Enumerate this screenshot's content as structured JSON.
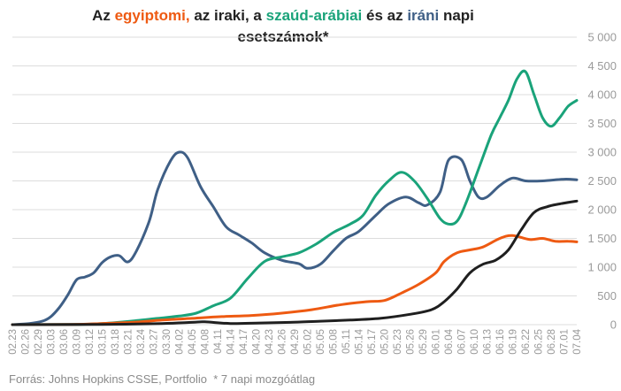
{
  "title": {
    "prefix": "Az ",
    "egypt": "egyiptomi,",
    "iraq_part": " az iraki, a ",
    "saudi": "szaúd-arábiai",
    "and_part": " és az ",
    "iran": "iráni",
    "suffix_line1": " napi",
    "line2": "esetszámok*"
  },
  "footer": {
    "source": "Forrás: Johns Hopkins CSSE, Portfolio",
    "note": "* 7 napi mozgóátlag"
  },
  "colors": {
    "egypt": "#ee5a12",
    "iraq": "#1f1f1f",
    "saudi": "#1aa37a",
    "iran": "#3f5f86",
    "grid": "#dcdcdc",
    "axis_text": "#9a9a9a"
  },
  "chart_data": {
    "type": "line",
    "x_start": "2020-02-23",
    "x_end": "2020-07-04",
    "ylim": [
      0,
      5000
    ],
    "yticks": [
      0,
      500,
      1000,
      1500,
      2000,
      2500,
      3000,
      3500,
      4000,
      4500,
      5000
    ],
    "ytick_labels": [
      "0",
      "500",
      "1 000",
      "1 500",
      "2 000",
      "2 500",
      "3 000",
      "3 500",
      "4 000",
      "4 500",
      "5 000"
    ],
    "xticks": [
      "2020-02-23",
      "2020-02-26",
      "2020-02-29",
      "2020-03-03",
      "2020-03-06",
      "2020-03-09",
      "2020-03-12",
      "2020-03-15",
      "2020-03-18",
      "2020-03-21",
      "2020-03-24",
      "2020-03-27",
      "2020-03-30",
      "2020-04-02",
      "2020-04-05",
      "2020-04-08",
      "2020-04-11",
      "2020-04-14",
      "2020-04-17",
      "2020-04-20",
      "2020-04-23",
      "2020-04-26",
      "2020-04-29",
      "2020-05-02",
      "2020-05-05",
      "2020-05-08",
      "2020-05-11",
      "2020-05-14",
      "2020-05-17",
      "2020-05-20",
      "2020-05-23",
      "2020-05-26",
      "2020-05-29",
      "2020-06-01",
      "2020-06-04",
      "2020-06-07",
      "2020-06-10",
      "2020-06-13",
      "2020-06-16",
      "2020-06-19",
      "2020-06-22",
      "2020-06-25",
      "2020-06-28",
      "2020-07-01",
      "2020-07-04"
    ],
    "xtick_labels": [
      "02.23",
      "02.26",
      "02.29",
      "03.03",
      "03.06",
      "03.09",
      "03.12",
      "03.15",
      "03.18",
      "03.21",
      "03.24",
      "03.27",
      "03.30",
      "04.02",
      "04.05",
      "04.08",
      "04.11",
      "04.14",
      "04.17",
      "04.20",
      "04.23",
      "04.26",
      "04.29",
      "05.02",
      "05.05",
      "05.08",
      "05.11",
      "05.14",
      "05.17",
      "05.20",
      "05.23",
      "05.26",
      "05.29",
      "06.01",
      "06.04",
      "06.07",
      "06.10",
      "06.13",
      "06.16",
      "06.19",
      "06.22",
      "06.25",
      "06.28",
      "07.01",
      "07.04"
    ],
    "grid": true,
    "legend": "none",
    "series": [
      {
        "key": "iran",
        "points": [
          [
            "2020-02-23",
            0
          ],
          [
            "2020-02-27",
            20
          ],
          [
            "2020-03-01",
            60
          ],
          [
            "2020-03-03",
            140
          ],
          [
            "2020-03-05",
            300
          ],
          [
            "2020-03-07",
            520
          ],
          [
            "2020-03-09",
            780
          ],
          [
            "2020-03-11",
            830
          ],
          [
            "2020-03-13",
            900
          ],
          [
            "2020-03-15",
            1080
          ],
          [
            "2020-03-17",
            1180
          ],
          [
            "2020-03-19",
            1200
          ],
          [
            "2020-03-21",
            1090
          ],
          [
            "2020-03-23",
            1280
          ],
          [
            "2020-03-26",
            1800
          ],
          [
            "2020-03-28",
            2350
          ],
          [
            "2020-03-31",
            2850
          ],
          [
            "2020-04-02",
            3000
          ],
          [
            "2020-04-04",
            2900
          ],
          [
            "2020-04-07",
            2400
          ],
          [
            "2020-04-10",
            2050
          ],
          [
            "2020-04-13",
            1700
          ],
          [
            "2020-04-16",
            1560
          ],
          [
            "2020-04-19",
            1420
          ],
          [
            "2020-04-22",
            1250
          ],
          [
            "2020-04-26",
            1120
          ],
          [
            "2020-04-30",
            1060
          ],
          [
            "2020-05-02",
            980
          ],
          [
            "2020-05-05",
            1050
          ],
          [
            "2020-05-08",
            1280
          ],
          [
            "2020-05-11",
            1500
          ],
          [
            "2020-05-14",
            1620
          ],
          [
            "2020-05-18",
            1900
          ],
          [
            "2020-05-21",
            2100
          ],
          [
            "2020-05-25",
            2220
          ],
          [
            "2020-05-28",
            2120
          ],
          [
            "2020-05-30",
            2080
          ],
          [
            "2020-06-02",
            2300
          ],
          [
            "2020-06-04",
            2860
          ],
          [
            "2020-06-07",
            2870
          ],
          [
            "2020-06-09",
            2500
          ],
          [
            "2020-06-11",
            2220
          ],
          [
            "2020-06-13",
            2220
          ],
          [
            "2020-06-16",
            2420
          ],
          [
            "2020-06-19",
            2550
          ],
          [
            "2020-06-22",
            2500
          ],
          [
            "2020-06-26",
            2500
          ],
          [
            "2020-07-01",
            2530
          ],
          [
            "2020-07-04",
            2520
          ]
        ]
      },
      {
        "key": "saudi",
        "points": [
          [
            "2020-02-23",
            0
          ],
          [
            "2020-03-10",
            5
          ],
          [
            "2020-03-17",
            30
          ],
          [
            "2020-03-23",
            70
          ],
          [
            "2020-03-28",
            110
          ],
          [
            "2020-04-02",
            150
          ],
          [
            "2020-04-06",
            200
          ],
          [
            "2020-04-10",
            330
          ],
          [
            "2020-04-14",
            460
          ],
          [
            "2020-04-18",
            800
          ],
          [
            "2020-04-22",
            1100
          ],
          [
            "2020-04-26",
            1180
          ],
          [
            "2020-04-30",
            1250
          ],
          [
            "2020-05-04",
            1400
          ],
          [
            "2020-05-08",
            1600
          ],
          [
            "2020-05-12",
            1750
          ],
          [
            "2020-05-15",
            1900
          ],
          [
            "2020-05-18",
            2250
          ],
          [
            "2020-05-21",
            2500
          ],
          [
            "2020-05-24",
            2650
          ],
          [
            "2020-05-27",
            2500
          ],
          [
            "2020-05-30",
            2200
          ],
          [
            "2020-06-02",
            1850
          ],
          [
            "2020-06-04",
            1750
          ],
          [
            "2020-06-06",
            1800
          ],
          [
            "2020-06-08",
            2100
          ],
          [
            "2020-06-11",
            2700
          ],
          [
            "2020-06-14",
            3300
          ],
          [
            "2020-06-16",
            3600
          ],
          [
            "2020-06-18",
            3900
          ],
          [
            "2020-06-20",
            4270
          ],
          [
            "2020-06-22",
            4400
          ],
          [
            "2020-06-24",
            4000
          ],
          [
            "2020-06-26",
            3600
          ],
          [
            "2020-06-28",
            3450
          ],
          [
            "2020-06-30",
            3600
          ],
          [
            "2020-07-02",
            3800
          ],
          [
            "2020-07-04",
            3900
          ]
        ]
      },
      {
        "key": "egypt",
        "points": [
          [
            "2020-02-23",
            0
          ],
          [
            "2020-03-08",
            5
          ],
          [
            "2020-03-15",
            20
          ],
          [
            "2020-03-22",
            40
          ],
          [
            "2020-03-29",
            80
          ],
          [
            "2020-04-05",
            110
          ],
          [
            "2020-04-12",
            140
          ],
          [
            "2020-04-19",
            160
          ],
          [
            "2020-04-26",
            200
          ],
          [
            "2020-05-03",
            260
          ],
          [
            "2020-05-10",
            350
          ],
          [
            "2020-05-16",
            400
          ],
          [
            "2020-05-20",
            420
          ],
          [
            "2020-05-24",
            550
          ],
          [
            "2020-05-28",
            700
          ],
          [
            "2020-06-01",
            900
          ],
          [
            "2020-06-03",
            1100
          ],
          [
            "2020-06-06",
            1250
          ],
          [
            "2020-06-09",
            1300
          ],
          [
            "2020-06-12",
            1350
          ],
          [
            "2020-06-16",
            1500
          ],
          [
            "2020-06-19",
            1550
          ],
          [
            "2020-06-23",
            1480
          ],
          [
            "2020-06-26",
            1500
          ],
          [
            "2020-06-29",
            1450
          ],
          [
            "2020-07-02",
            1450
          ],
          [
            "2020-07-04",
            1440
          ]
        ]
      },
      {
        "key": "iraq",
        "points": [
          [
            "2020-02-23",
            0
          ],
          [
            "2020-03-15",
            5
          ],
          [
            "2020-03-29",
            20
          ],
          [
            "2020-04-05",
            40
          ],
          [
            "2020-04-08",
            50
          ],
          [
            "2020-04-14",
            20
          ],
          [
            "2020-04-21",
            30
          ],
          [
            "2020-04-28",
            40
          ],
          [
            "2020-05-05",
            60
          ],
          [
            "2020-05-12",
            80
          ],
          [
            "2020-05-19",
            110
          ],
          [
            "2020-05-26",
            180
          ],
          [
            "2020-05-31",
            260
          ],
          [
            "2020-06-03",
            400
          ],
          [
            "2020-06-06",
            620
          ],
          [
            "2020-06-09",
            900
          ],
          [
            "2020-06-12",
            1050
          ],
          [
            "2020-06-15",
            1120
          ],
          [
            "2020-06-18",
            1300
          ],
          [
            "2020-06-21",
            1650
          ],
          [
            "2020-06-24",
            1950
          ],
          [
            "2020-06-27",
            2050
          ],
          [
            "2020-06-30",
            2100
          ],
          [
            "2020-07-04",
            2150
          ]
        ]
      }
    ]
  }
}
